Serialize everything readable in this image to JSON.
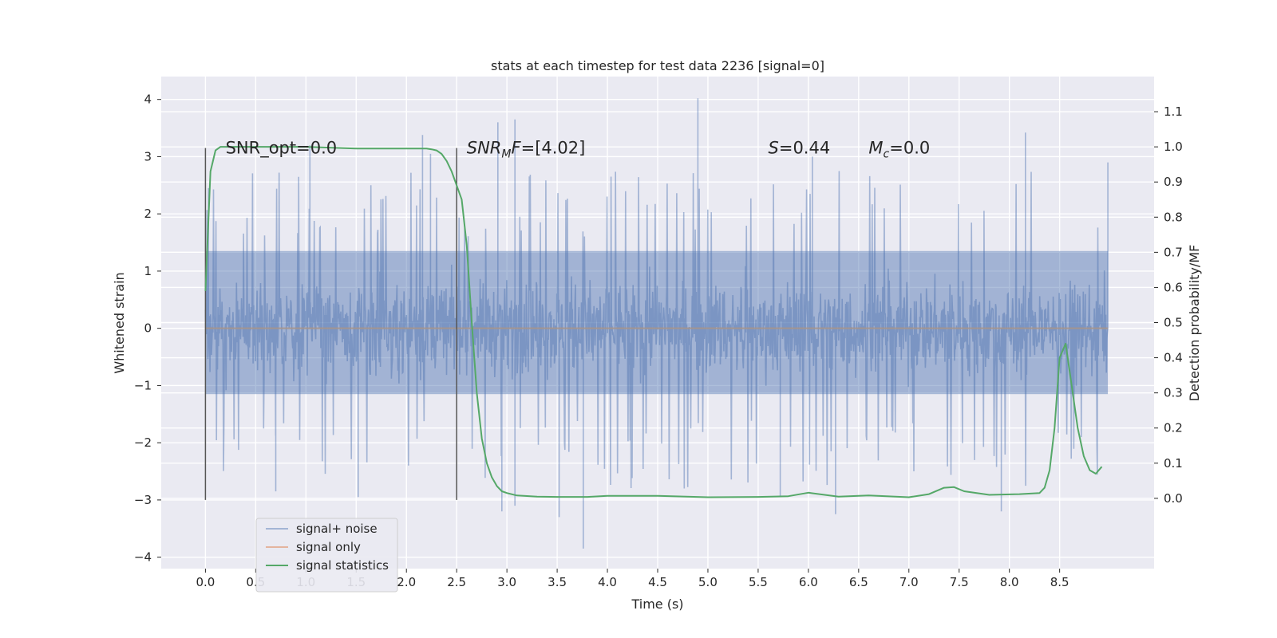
{
  "chart_data": {
    "type": "line",
    "title": "stats at each timestep for test data 2236 [signal=0]",
    "xlabel": "Time (s)",
    "ylabel": "Whitened strain",
    "ylabel_right": "Detection probability/MF",
    "xlim": [
      -0.44,
      9.44
    ],
    "ylim": [
      -4.2,
      4.4
    ],
    "ylim_right": [
      -0.2,
      1.2
    ],
    "x_ticks": [
      "0.0",
      "0.5",
      "1.0",
      "1.5",
      "2.0",
      "2.5",
      "3.0",
      "3.5",
      "4.0",
      "4.5",
      "5.0",
      "5.5",
      "6.0",
      "6.5",
      "7.0",
      "7.5",
      "8.0",
      "8.5"
    ],
    "y_ticks": [
      "4",
      "3",
      "2",
      "1",
      "0",
      "−1",
      "−2",
      "−3",
      "−4"
    ],
    "y_right_ticks": [
      "1.1",
      "1.0",
      "0.9",
      "0.8",
      "0.7",
      "0.6",
      "0.5",
      "0.4",
      "0.3",
      "0.2",
      "0.1",
      "0.0"
    ],
    "grid": true,
    "legend_position": "lower-left",
    "annotations": [
      {
        "text": "SNR_opt=0.0",
        "x": 0.2,
        "y": 3.15
      },
      {
        "text": "SNR_MF=[4.02]",
        "x": 2.6,
        "y": 3.15
      },
      {
        "text": "S=0.44",
        "x": 5.6,
        "y": 3.15
      },
      {
        "text": "M_c=0.0",
        "x": 6.6,
        "y": 3.15
      }
    ],
    "vertical_lines": [
      {
        "x": 0.0,
        "y_range": [
          -3.0,
          3.15
        ]
      },
      {
        "x": 2.5,
        "y_range": [
          -3.0,
          3.15
        ]
      }
    ],
    "series": [
      {
        "name": "signal+ noise",
        "color": "#4c72b0",
        "axis": "left",
        "x_range": [
          0.0,
          8.98
        ],
        "typical_range": [
          -1.15,
          1.35
        ],
        "extreme_range": [
          -3.85,
          4.02
        ],
        "notable_peaks": [
          [
            0.03,
            2.45
          ],
          [
            0.7,
            -2.85
          ],
          [
            1.04,
            3.2
          ],
          [
            1.52,
            -2.95
          ],
          [
            2.16,
            3.38
          ],
          [
            2.24,
            3.05
          ],
          [
            2.91,
            3.6
          ],
          [
            3.08,
            3.65
          ],
          [
            2.95,
            -3.2
          ],
          [
            3.08,
            -3.1
          ],
          [
            3.52,
            -3.3
          ],
          [
            3.76,
            -3.85
          ],
          [
            4.9,
            4.02
          ],
          [
            5.72,
            -2.95
          ],
          [
            6.04,
            3.0
          ],
          [
            6.27,
            -3.25
          ],
          [
            7.92,
            -3.2
          ],
          [
            8.16,
            3.42
          ],
          [
            8.98,
            2.9
          ]
        ]
      },
      {
        "name": "signal only",
        "color": "#dd8452",
        "axis": "left",
        "x": [
          0.0,
          8.98
        ],
        "y": [
          0.0,
          0.0
        ]
      },
      {
        "name": "signal statistics",
        "color": "#55a868",
        "axis": "right",
        "x": [
          0.0,
          0.05,
          0.1,
          0.15,
          0.2,
          0.3,
          0.5,
          1.0,
          1.5,
          2.0,
          2.1,
          2.2,
          2.25,
          2.3,
          2.35,
          2.4,
          2.45,
          2.5,
          2.55,
          2.6,
          2.65,
          2.7,
          2.75,
          2.8,
          2.85,
          2.9,
          2.95,
          3.0,
          3.1,
          3.3,
          3.5,
          3.8,
          4.0,
          4.5,
          5.0,
          5.5,
          5.8,
          6.0,
          6.3,
          6.6,
          7.0,
          7.2,
          7.35,
          7.45,
          7.55,
          7.8,
          8.1,
          8.3,
          8.35,
          8.4,
          8.45,
          8.5,
          8.56,
          8.62,
          8.68,
          8.74,
          8.8,
          8.86,
          8.92
        ],
        "y": [
          0.59,
          0.93,
          0.99,
          1.0,
          1.0,
          1.0,
          1.0,
          1.0,
          0.995,
          0.995,
          0.995,
          0.995,
          0.993,
          0.99,
          0.98,
          0.96,
          0.93,
          0.89,
          0.85,
          0.72,
          0.5,
          0.3,
          0.17,
          0.1,
          0.06,
          0.035,
          0.02,
          0.015,
          0.008,
          0.005,
          0.004,
          0.004,
          0.007,
          0.007,
          0.003,
          0.004,
          0.006,
          0.016,
          0.005,
          0.008,
          0.003,
          0.012,
          0.03,
          0.032,
          0.02,
          0.01,
          0.012,
          0.015,
          0.03,
          0.08,
          0.2,
          0.4,
          0.44,
          0.32,
          0.2,
          0.12,
          0.08,
          0.07,
          0.09
        ]
      }
    ]
  }
}
